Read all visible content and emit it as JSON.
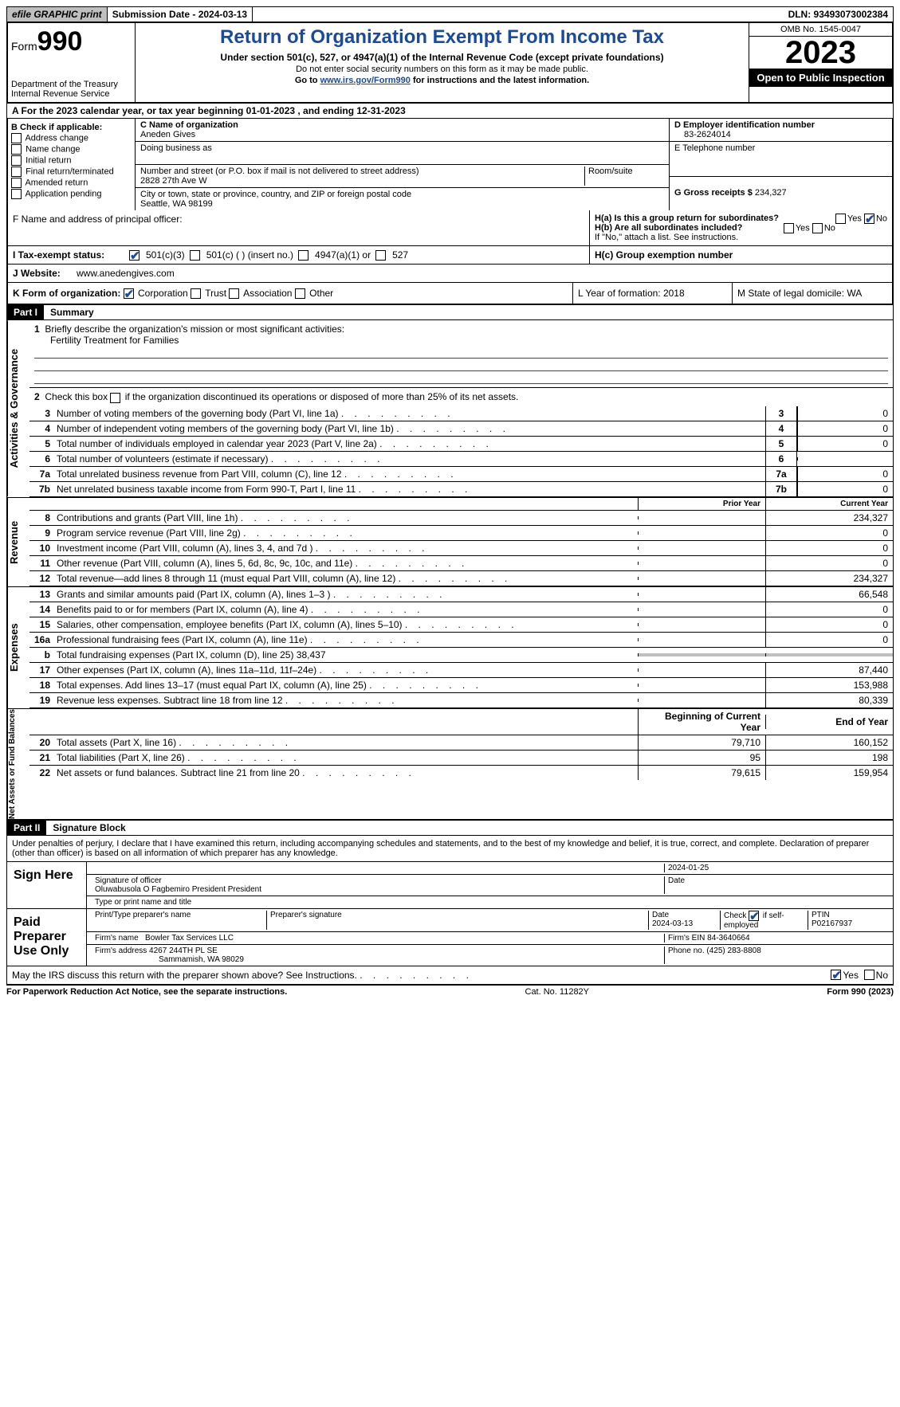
{
  "topbar": {
    "efile": "efile GRAPHIC print",
    "submission": "Submission Date - 2024-03-13",
    "dln": "DLN: 93493073002384"
  },
  "header": {
    "form_label": "Form",
    "form_number": "990",
    "dept": "Department of the Treasury",
    "irs": "Internal Revenue Service",
    "title": "Return of Organization Exempt From Income Tax",
    "sub": "Under section 501(c), 527, or 4947(a)(1) of the Internal Revenue Code (except private foundations)",
    "note1": "Do not enter social security numbers on this form as it may be made public.",
    "note2_pre": "Go to ",
    "note2_link": "www.irs.gov/Form990",
    "note2_post": " for instructions and the latest information.",
    "omb": "OMB No. 1545-0047",
    "year": "2023",
    "inspect": "Open to Public Inspection"
  },
  "lineA": "A For the 2023 calendar year, or tax year beginning 01-01-2023    , and ending 12-31-2023",
  "colB": {
    "hdr": "B Check if applicable:",
    "items": [
      "Address change",
      "Name change",
      "Initial return",
      "Final return/terminated",
      "Amended return",
      "Application pending"
    ]
  },
  "colC": {
    "name_lbl": "C Name of organization",
    "name": "Aneden Gives",
    "dba_lbl": "Doing business as",
    "street_lbl": "Number and street (or P.O. box if mail is not delivered to street address)",
    "street": "2828 27th Ave W",
    "room_lbl": "Room/suite",
    "city_lbl": "City or town, state or province, country, and ZIP or foreign postal code",
    "city": "Seattle, WA  98199"
  },
  "colD": {
    "ein_lbl": "D Employer identification number",
    "ein": "83-2624014",
    "tel_lbl": "E Telephone number",
    "gross_lbl": "G Gross receipts $ ",
    "gross": "234,327"
  },
  "rowF": {
    "lbl": "F  Name and address of principal officer:",
    "ha_lbl": "H(a)  Is this a group return for subordinates?",
    "hb_lbl": "H(b)  Are all subordinates included?",
    "hb_note": "If \"No,\" attach a list. See instructions.",
    "hc_lbl": "H(c)  Group exemption number"
  },
  "statusI": {
    "lbl": "I   Tax-exempt status:",
    "opts": [
      "501(c)(3)",
      "501(c) (  ) (insert no.)",
      "4947(a)(1) or",
      "527"
    ]
  },
  "rowJ": {
    "lbl": "J   Website:",
    "val": "www.anedengives.com"
  },
  "rowK": {
    "lbl": "K Form of organization:",
    "opts": [
      "Corporation",
      "Trust",
      "Association",
      "Other"
    ],
    "L": "L Year of formation: 2018",
    "M": "M State of legal domicile: WA"
  },
  "part1": {
    "hdr": "Part I",
    "title": "Summary",
    "line1_lbl": "Briefly describe the organization's mission or most significant activities:",
    "line1_val": "Fertility Treatment for Families",
    "line2": "Check this box      if the organization discontinued its operations or disposed of more than 25% of its net assets.",
    "governance": [
      {
        "n": "3",
        "t": "Number of voting members of the governing body (Part VI, line 1a)",
        "v": "0"
      },
      {
        "n": "4",
        "t": "Number of independent voting members of the governing body (Part VI, line 1b)",
        "v": "0"
      },
      {
        "n": "5",
        "t": "Total number of individuals employed in calendar year 2023 (Part V, line 2a)",
        "v": "0"
      },
      {
        "n": "6",
        "t": "Total number of volunteers (estimate if necessary)",
        "v": ""
      },
      {
        "n": "7a",
        "t": "Total unrelated business revenue from Part VIII, column (C), line 12",
        "v": "0"
      },
      {
        "n": "7b",
        "t": "Net unrelated business taxable income from Form 990-T, Part I, line 11",
        "nolabel": true,
        "v": "0"
      }
    ],
    "prior_hdr": "Prior Year",
    "curr_hdr": "Current Year",
    "revenue": [
      {
        "n": "8",
        "t": "Contributions and grants (Part VIII, line 1h)",
        "p": "",
        "c": "234,327"
      },
      {
        "n": "9",
        "t": "Program service revenue (Part VIII, line 2g)",
        "p": "",
        "c": "0"
      },
      {
        "n": "10",
        "t": "Investment income (Part VIII, column (A), lines 3, 4, and 7d )",
        "p": "",
        "c": "0"
      },
      {
        "n": "11",
        "t": "Other revenue (Part VIII, column (A), lines 5, 6d, 8c, 9c, 10c, and 11e)",
        "p": "",
        "c": "0"
      },
      {
        "n": "12",
        "t": "Total revenue—add lines 8 through 11 (must equal Part VIII, column (A), line 12)",
        "p": "",
        "c": "234,327"
      }
    ],
    "expenses": [
      {
        "n": "13",
        "t": "Grants and similar amounts paid (Part IX, column (A), lines 1–3 )",
        "p": "",
        "c": "66,548"
      },
      {
        "n": "14",
        "t": "Benefits paid to or for members (Part IX, column (A), line 4)",
        "p": "",
        "c": "0"
      },
      {
        "n": "15",
        "t": "Salaries, other compensation, employee benefits (Part IX, column (A), lines 5–10)",
        "p": "",
        "c": "0"
      },
      {
        "n": "16a",
        "t": "Professional fundraising fees (Part IX, column (A), line 11e)",
        "p": "",
        "c": "0"
      },
      {
        "n": "b",
        "t": "Total fundraising expenses (Part IX, column (D), line 25) 38,437",
        "shaded": true
      },
      {
        "n": "17",
        "t": "Other expenses (Part IX, column (A), lines 11a–11d, 11f–24e)",
        "p": "",
        "c": "87,440"
      },
      {
        "n": "18",
        "t": "Total expenses. Add lines 13–17 (must equal Part IX, column (A), line 25)",
        "p": "",
        "c": "153,988"
      },
      {
        "n": "19",
        "t": "Revenue less expenses. Subtract line 18 from line 12",
        "p": "",
        "c": "80,339"
      }
    ],
    "begin_hdr": "Beginning of Current Year",
    "end_hdr": "End of Year",
    "netassets": [
      {
        "n": "20",
        "t": "Total assets (Part X, line 16)",
        "p": "79,710",
        "c": "160,152"
      },
      {
        "n": "21",
        "t": "Total liabilities (Part X, line 26)",
        "p": "95",
        "c": "198"
      },
      {
        "n": "22",
        "t": "Net assets or fund balances. Subtract line 21 from line 20",
        "p": "79,615",
        "c": "159,954"
      }
    ]
  },
  "part2": {
    "hdr": "Part II",
    "title": "Signature Block",
    "decl": "Under penalties of perjury, I declare that I have examined this return, including accompanying schedules and statements, and to the best of my knowledge and belief, it is true, correct, and complete. Declaration of preparer (other than officer) is based on all information of which preparer has any knowledge.",
    "sign_here": "Sign Here",
    "sig_date": "2024-01-25",
    "sig_lbl": "Signature of officer",
    "officer": "Oluwabusola O Fagbemiro President President",
    "type_lbl": "Type or print name and title",
    "date_lbl": "Date",
    "paid": "Paid Preparer Use Only",
    "prep_name_lbl": "Print/Type preparer's name",
    "prep_sig_lbl": "Preparer's signature",
    "prep_date": "2024-03-13",
    "self_emp": "Check       if self-employed",
    "ptin_lbl": "PTIN",
    "ptin": "P02167937",
    "firm_name_lbl": "Firm's name",
    "firm_name": "Bowler Tax Services LLC",
    "firm_ein_lbl": "Firm's EIN",
    "firm_ein": "84-3640664",
    "firm_addr_lbl": "Firm's address",
    "firm_addr": "4267 244TH PL SE",
    "firm_city": "Sammamish, WA  98029",
    "phone_lbl": "Phone no.",
    "phone": "(425) 283-8808",
    "may_irs": "May the IRS discuss this return with the preparer shown above? See Instructions."
  },
  "footer": {
    "l": "For Paperwork Reduction Act Notice, see the separate instructions.",
    "m": "Cat. No. 11282Y",
    "r": "Form 990 (2023)"
  },
  "yesno": {
    "yes": "Yes",
    "no": "No"
  },
  "sidelabels": {
    "gov": "Activities & Governance",
    "rev": "Revenue",
    "exp": "Expenses",
    "net": "Net Assets or Fund Balances"
  }
}
